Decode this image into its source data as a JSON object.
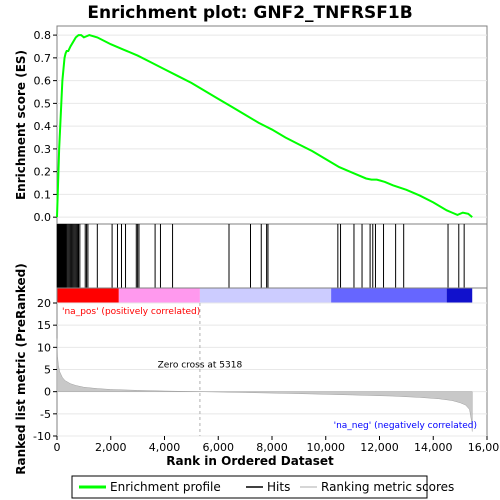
{
  "chart_data": {
    "type": "line",
    "title": "Enrichment plot: GNF2_TNFRSF1B",
    "es_panel": {
      "ylabel": "Enrichment score (ES)",
      "ylim": [
        -0.03,
        0.84
      ],
      "yticks": [
        0.0,
        0.1,
        0.2,
        0.3,
        0.4,
        0.5,
        0.6,
        0.7,
        0.8
      ],
      "series": {
        "name": "Enrichment profile",
        "color": "#00ff00",
        "x": [
          0,
          40,
          80,
          120,
          160,
          200,
          240,
          280,
          320,
          360,
          420,
          500,
          600,
          700,
          800,
          900,
          1000,
          1100,
          1200,
          1500,
          2000,
          2500,
          3000,
          3500,
          4000,
          4500,
          5000,
          5500,
          6000,
          6500,
          7000,
          7500,
          8000,
          8500,
          9000,
          9500,
          10000,
          10500,
          11000,
          11500,
          11700,
          11900,
          12200,
          12500,
          13000,
          13500,
          14000,
          14500,
          14700,
          14900,
          15100,
          15300,
          15450
        ],
        "y": [
          0.0,
          0.15,
          0.3,
          0.4,
          0.5,
          0.6,
          0.65,
          0.7,
          0.72,
          0.73,
          0.73,
          0.75,
          0.77,
          0.79,
          0.8,
          0.8,
          0.79,
          0.795,
          0.8,
          0.79,
          0.76,
          0.735,
          0.71,
          0.68,
          0.65,
          0.62,
          0.59,
          0.555,
          0.52,
          0.485,
          0.45,
          0.415,
          0.385,
          0.35,
          0.32,
          0.29,
          0.255,
          0.22,
          0.195,
          0.17,
          0.165,
          0.165,
          0.155,
          0.14,
          0.12,
          0.095,
          0.065,
          0.03,
          0.02,
          0.01,
          0.02,
          0.015,
          0.0
        ]
      }
    },
    "hits": {
      "name": "Hits",
      "positions": [
        10,
        25,
        40,
        60,
        80,
        100,
        120,
        140,
        160,
        180,
        200,
        220,
        240,
        260,
        280,
        300,
        330,
        360,
        400,
        440,
        480,
        520,
        560,
        600,
        640,
        680,
        720,
        760,
        800,
        850,
        1050,
        1100,
        1150,
        1500,
        2050,
        2250,
        2400,
        2550,
        2950,
        3000,
        3050,
        3650,
        3850,
        4300,
        6400,
        7200,
        7600,
        7800,
        7850,
        10450,
        10550,
        11050,
        11350,
        11650,
        11750,
        11850,
        12150,
        12600,
        12900,
        14550,
        14950,
        15150
      ]
    },
    "ranking_panel": {
      "ylabel": "Ranked list metric (PreRanked)",
      "ylim": [
        -10,
        20
      ],
      "yticks": [
        -10,
        -5,
        0,
        5,
        10,
        15,
        20
      ],
      "zero_cross": 5318,
      "zero_cross_label": "Zero cross at 5318",
      "pos_label": "'na_pos' (positively correlated)",
      "neg_label": "'na_neg' (negatively correlated)",
      "metric": {
        "x": [
          0,
          20,
          50,
          100,
          200,
          300,
          500,
          700,
          1000,
          1500,
          2000,
          3000,
          4000,
          5318,
          7000,
          9000,
          11000,
          12500,
          13500,
          14200,
          14700,
          15000,
          15200,
          15350,
          15420,
          15450
        ],
        "y": [
          12,
          8,
          6,
          4.5,
          3.2,
          2.5,
          1.8,
          1.4,
          1.0,
          0.7,
          0.5,
          0.3,
          0.15,
          0,
          -0.2,
          -0.45,
          -0.75,
          -1.0,
          -1.3,
          -1.6,
          -2.0,
          -2.5,
          -3.0,
          -4.0,
          -6.5,
          -9.0
        ]
      }
    },
    "xaxis": {
      "label": "Rank in Ordered Dataset",
      "xlim": [
        0,
        16000
      ],
      "xticks": [
        0,
        2000,
        4000,
        6000,
        8000,
        10000,
        12000,
        14000,
        16000
      ],
      "n_genes": 15450
    },
    "colorbar": {
      "segments": [
        {
          "from": 0,
          "to": 2300,
          "color": "#ff0000"
        },
        {
          "from": 2300,
          "to": 5318,
          "color": "#ff99ee"
        },
        {
          "from": 5318,
          "to": 10200,
          "color": "#ccccff"
        },
        {
          "from": 10200,
          "to": 14500,
          "color": "#6666ff"
        },
        {
          "from": 14500,
          "to": 15450,
          "color": "#1111cc"
        }
      ]
    },
    "legend": {
      "items": [
        {
          "label": "Enrichment profile",
          "color": "#00ff00"
        },
        {
          "label": "Hits",
          "color": "#000000"
        },
        {
          "label": "Ranking metric scores",
          "color": "#c8c8c8"
        }
      ]
    }
  }
}
